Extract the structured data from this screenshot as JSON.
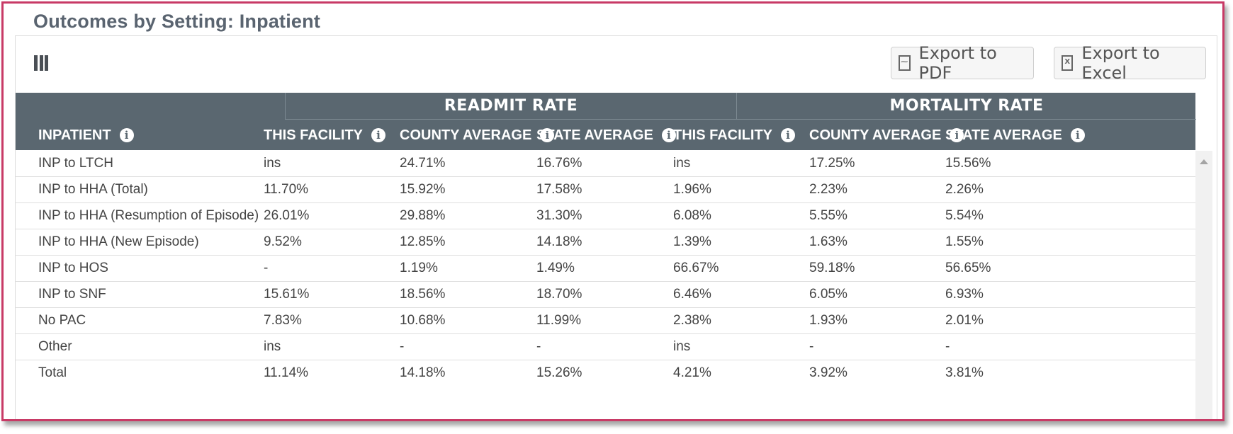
{
  "page": {
    "title": "Outcomes by Setting: Inpatient"
  },
  "colors": {
    "frame": "#c83a66",
    "header_bg": "#5a6770",
    "title": "#5a6470"
  },
  "toolbar": {
    "columns_icon": "column-chooser-icon",
    "export_pdf_label": "Export to PDF",
    "export_excel_label": "Export to Excel",
    "pdf_icon": "pdf-file-icon",
    "excel_icon": "excel-file-icon"
  },
  "table": {
    "groups": [
      "READMIT RATE",
      "MORTALITY RATE"
    ],
    "columns": [
      "INPATIENT",
      "THIS FACILITY",
      "COUNTY AVERAGE",
      "STATE AVERAGE",
      "THIS FACILITY",
      "COUNTY AVERAGE",
      "STATE AVERAGE"
    ],
    "rows": [
      [
        "INP to LTCH",
        "ins",
        "24.71%",
        "16.76%",
        "ins",
        "17.25%",
        "15.56%"
      ],
      [
        "INP to HHA (Total)",
        "11.70%",
        "15.92%",
        "17.58%",
        "1.96%",
        "2.23%",
        "2.26%"
      ],
      [
        "INP to HHA (Resumption of Episode)",
        "26.01%",
        "29.88%",
        "31.30%",
        "6.08%",
        "5.55%",
        "5.54%"
      ],
      [
        "INP to HHA (New Episode)",
        "9.52%",
        "12.85%",
        "14.18%",
        "1.39%",
        "1.63%",
        "1.55%"
      ],
      [
        "INP to HOS",
        "-",
        "1.19%",
        "1.49%",
        "66.67%",
        "59.18%",
        "56.65%"
      ],
      [
        "INP to SNF",
        "15.61%",
        "18.56%",
        "18.70%",
        "6.46%",
        "6.05%",
        "6.93%"
      ],
      [
        "No PAC",
        "7.83%",
        "10.68%",
        "11.99%",
        "2.38%",
        "1.93%",
        "2.01%"
      ],
      [
        "Other",
        "ins",
        "-",
        "-",
        "ins",
        "-",
        "-"
      ],
      [
        "Total",
        "11.14%",
        "14.18%",
        "15.26%",
        "4.21%",
        "3.92%",
        "3.81%"
      ]
    ]
  }
}
